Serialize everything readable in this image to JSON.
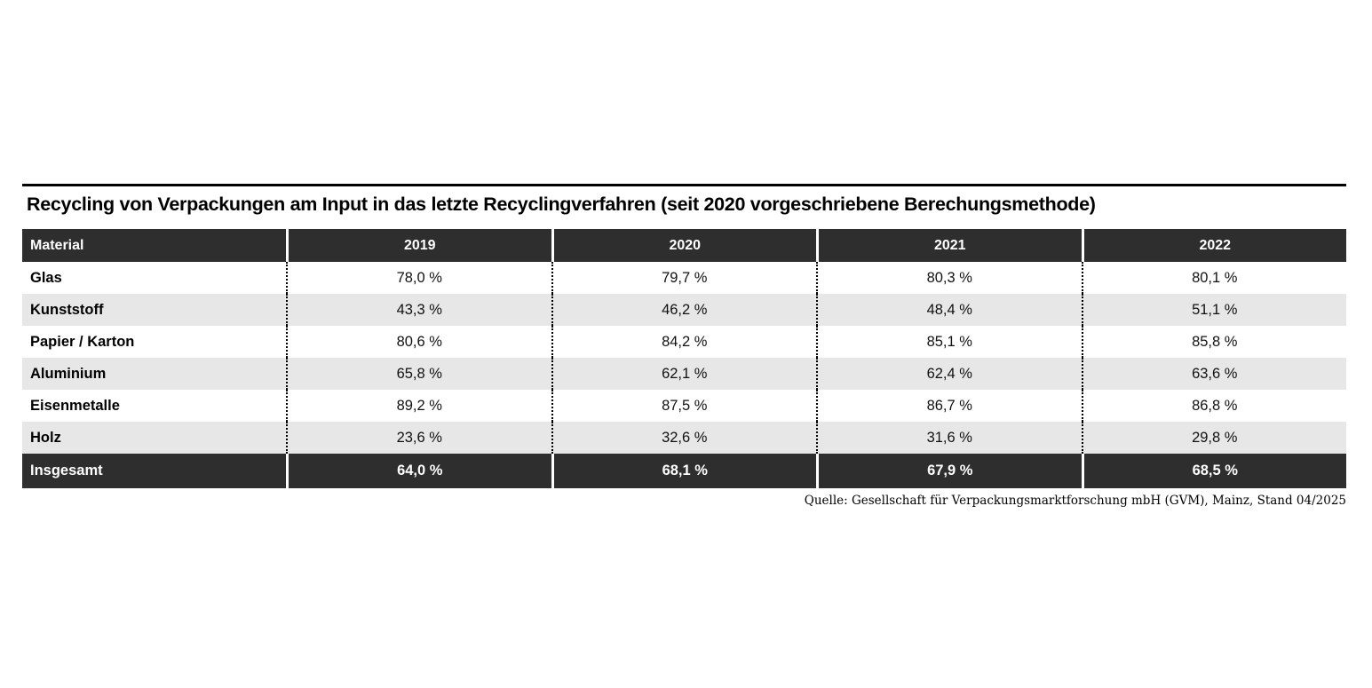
{
  "chart_data": {
    "type": "table",
    "title": "Recycling von Verpackungen am Input in das letzte Recyclingverfahren (seit 2020 vorgeschriebene Berechungsmethode)",
    "columns": [
      "Material",
      "2019",
      "2020",
      "2021",
      "2022"
    ],
    "rows": [
      {
        "material": "Glas",
        "values": [
          "78,0 %",
          "79,7 %",
          "80,3 %",
          "80,1 %"
        ],
        "values_numeric": [
          78.0,
          79.7,
          80.3,
          80.1
        ]
      },
      {
        "material": "Kunststoff",
        "values": [
          "43,3 %",
          "46,2 %",
          "48,4 %",
          "51,1 %"
        ],
        "values_numeric": [
          43.3,
          46.2,
          48.4,
          51.1
        ]
      },
      {
        "material": "Papier / Karton",
        "values": [
          "80,6 %",
          "84,2 %",
          "85,1 %",
          "85,8 %"
        ],
        "values_numeric": [
          80.6,
          84.2,
          85.1,
          85.8
        ]
      },
      {
        "material": "Aluminium",
        "values": [
          "65,8 %",
          "62,1 %",
          "62,4 %",
          "63,6 %"
        ],
        "values_numeric": [
          65.8,
          62.1,
          62.4,
          63.6
        ]
      },
      {
        "material": "Eisenmetalle",
        "values": [
          "89,2 %",
          "87,5 %",
          "86,7 %",
          "86,8 %"
        ],
        "values_numeric": [
          89.2,
          87.5,
          86.7,
          86.8
        ]
      },
      {
        "material": "Holz",
        "values": [
          "23,6 %",
          "32,6 %",
          "31,6 %",
          "29,8 %"
        ],
        "values_numeric": [
          23.6,
          32.6,
          31.6,
          29.8
        ]
      }
    ],
    "total_row": {
      "material": "Insgesamt",
      "values": [
        "64,0 %",
        "68,1 %",
        "67,9 %",
        "68,5 %"
      ],
      "values_numeric": [
        64.0,
        68.1,
        67.9,
        68.5
      ]
    },
    "unit": "%",
    "source": "Quelle: Gesellschaft für Verpackungsmarktforschung mbH (GVM), Mainz, Stand 04/2025",
    "layout": {
      "header_bg": "#2e2e2e",
      "total_row_bg": "#2e2e2e",
      "alt_row_bg": "#e7e7e7",
      "row_divider_style": "dotted",
      "header_text_color": "#ffffff"
    }
  }
}
